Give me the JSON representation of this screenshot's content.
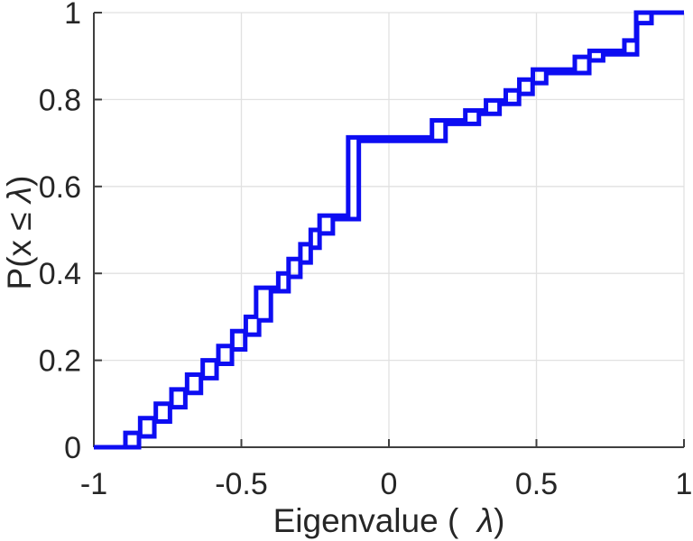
{
  "figure": {
    "background": "#ffffff",
    "axes_color": "#3f3f3f",
    "tick_text_color": "#262626",
    "grid_color": "#e1e1e1",
    "line_color": "#0d0df2"
  },
  "chart_data": {
    "type": "line",
    "subtype": "ecdf-staircase",
    "title": "",
    "xlabel": "Eigenvalue (  λ)",
    "ylabel": "P(x ≤ λ)",
    "xlim": [
      -1,
      1
    ],
    "ylim": [
      0,
      1
    ],
    "xticks": [
      -1,
      -0.5,
      0,
      0.5,
      1
    ],
    "xtick_labels": [
      "-1",
      "-0.5",
      "0",
      "0.5",
      "1"
    ],
    "yticks": [
      0,
      0.2,
      0.4,
      0.6,
      0.8,
      1
    ],
    "ytick_labels": [
      "0",
      "0.2",
      "0.4",
      "0.6",
      "0.8",
      "1"
    ],
    "grid": true,
    "legend": null,
    "series": [
      {
        "name": "series-1",
        "color": "#0d0df2",
        "start": [
          -1,
          0
        ],
        "end_x": 1,
        "jumps": [
          [
            -0.893,
            0.033
          ],
          [
            -0.843,
            0.067
          ],
          [
            -0.79,
            0.1
          ],
          [
            -0.737,
            0.133
          ],
          [
            -0.684,
            0.167
          ],
          [
            -0.631,
            0.2
          ],
          [
            -0.578,
            0.233
          ],
          [
            -0.531,
            0.267
          ],
          [
            -0.485,
            0.3
          ],
          [
            -0.45,
            0.367
          ],
          [
            -0.375,
            0.4
          ],
          [
            -0.34,
            0.433
          ],
          [
            -0.3,
            0.467
          ],
          [
            -0.265,
            0.5
          ],
          [
            -0.235,
            0.533
          ],
          [
            -0.138,
            0.713
          ],
          [
            0.146,
            0.752
          ],
          [
            0.259,
            0.775
          ],
          [
            0.329,
            0.798
          ],
          [
            0.396,
            0.821
          ],
          [
            0.442,
            0.846
          ],
          [
            0.488,
            0.869
          ],
          [
            0.63,
            0.898
          ],
          [
            0.68,
            0.912
          ],
          [
            0.798,
            0.936
          ],
          [
            0.838,
            1.0
          ]
        ]
      },
      {
        "name": "series-2",
        "color": "#0d0df2",
        "start": [
          -1,
          0
        ],
        "end_x": 1,
        "jumps": [
          [
            -0.847,
            0.025
          ],
          [
            -0.795,
            0.059
          ],
          [
            -0.742,
            0.092
          ],
          [
            -0.69,
            0.125
          ],
          [
            -0.637,
            0.159
          ],
          [
            -0.584,
            0.192
          ],
          [
            -0.532,
            0.225
          ],
          [
            -0.487,
            0.259
          ],
          [
            -0.44,
            0.292
          ],
          [
            -0.4,
            0.359
          ],
          [
            -0.34,
            0.392
          ],
          [
            -0.3,
            0.425
          ],
          [
            -0.265,
            0.459
          ],
          [
            -0.235,
            0.492
          ],
          [
            -0.19,
            0.525
          ],
          [
            -0.102,
            0.705
          ],
          [
            0.192,
            0.744
          ],
          [
            0.305,
            0.767
          ],
          [
            0.375,
            0.79
          ],
          [
            0.441,
            0.813
          ],
          [
            0.487,
            0.838
          ],
          [
            0.533,
            0.861
          ],
          [
            0.679,
            0.89
          ],
          [
            0.726,
            0.904
          ],
          [
            0.841,
            0.976
          ],
          [
            0.89,
            1.0
          ]
        ]
      }
    ]
  }
}
